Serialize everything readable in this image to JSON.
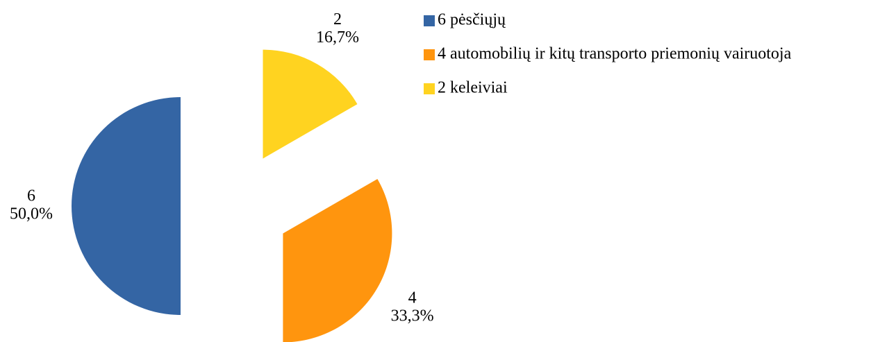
{
  "chart_data": {
    "type": "pie",
    "categories": [
      "6 pėsčiųjų",
      "4 automobilių ir kitų transporto priemonių vairuotoja",
      "2 keleiviai"
    ],
    "values": [
      6,
      4,
      2
    ],
    "percentages": [
      50.0,
      33.3,
      16.7
    ],
    "percentage_labels": [
      "50,0%",
      "33,3%",
      "16,7%"
    ],
    "colors": [
      "#3465a4",
      "#ff950e",
      "#ffd320"
    ],
    "exploded": true,
    "legend": "right"
  }
}
